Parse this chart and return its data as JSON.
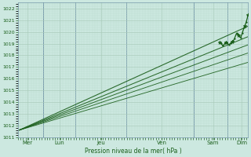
{
  "xlabel": "Pression niveau de la mer( hPa )",
  "ylim": [
    1011,
    1022.5
  ],
  "xlim": [
    0,
    7.2
  ],
  "yticks": [
    1011,
    1012,
    1013,
    1014,
    1015,
    1016,
    1017,
    1018,
    1019,
    1020,
    1021,
    1022
  ],
  "xtick_positions": [
    0.3,
    1.3,
    2.6,
    4.5,
    6.1,
    7.0
  ],
  "xtick_labels": [
    "Mer",
    "Lun",
    "Jeu",
    "Ven",
    "Sam",
    "Dim"
  ],
  "vline_positions": [
    0.8,
    1.8,
    3.4,
    5.5,
    6.55
  ],
  "background_color": "#cce8e0",
  "grid_major_color": "#aaccbb",
  "grid_minor_color": "#bbddd0",
  "line_color": "#1a5e1a",
  "text_color": "#1a5e1a",
  "trend_lines": [
    [
      0.05,
      1011.6,
      7.2,
      1017.4
    ],
    [
      0.05,
      1011.6,
      7.2,
      1018.2
    ],
    [
      0.05,
      1011.6,
      7.2,
      1018.9
    ],
    [
      0.05,
      1011.6,
      7.2,
      1019.6
    ],
    [
      0.05,
      1011.6,
      7.2,
      1020.5
    ]
  ]
}
